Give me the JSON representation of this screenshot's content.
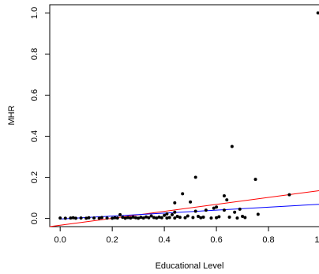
{
  "chart_data": {
    "type": "scatter",
    "title": "",
    "xlabel": "Educational Level",
    "ylabel": "MHR",
    "xlim": [
      -0.04,
      1.0
    ],
    "ylim": [
      -0.04,
      1.04
    ],
    "xticks": [
      0.0,
      0.2,
      0.4,
      0.6,
      0.8,
      1.0
    ],
    "yticks": [
      0.0,
      0.2,
      0.4,
      0.6,
      0.8,
      1.0
    ],
    "xtick_labels": [
      "0.0",
      "0.2",
      "0.4",
      "0.6",
      "0.8",
      "1.0"
    ],
    "ytick_labels": [
      "0.0",
      "0.2",
      "0.4",
      "0.6",
      "0.8",
      "1.0"
    ],
    "grid": false,
    "points": [
      [
        0.0,
        0.002
      ],
      [
        0.02,
        0.001
      ],
      [
        0.04,
        0.002
      ],
      [
        0.05,
        0.003
      ],
      [
        0.06,
        0.001
      ],
      [
        0.08,
        0.002
      ],
      [
        0.1,
        0.001
      ],
      [
        0.11,
        0.003
      ],
      [
        0.13,
        0.002
      ],
      [
        0.15,
        0.001
      ],
      [
        0.16,
        0.004
      ],
      [
        0.18,
        0.002
      ],
      [
        0.2,
        0.001
      ],
      [
        0.21,
        0.003
      ],
      [
        0.22,
        0.002
      ],
      [
        0.23,
        0.018
      ],
      [
        0.24,
        0.005
      ],
      [
        0.25,
        0.001
      ],
      [
        0.26,
        0.004
      ],
      [
        0.27,
        0.002
      ],
      [
        0.28,
        0.006
      ],
      [
        0.29,
        0.003
      ],
      [
        0.3,
        0.001
      ],
      [
        0.31,
        0.005
      ],
      [
        0.32,
        0.002
      ],
      [
        0.33,
        0.007
      ],
      [
        0.34,
        0.003
      ],
      [
        0.35,
        0.012
      ],
      [
        0.36,
        0.004
      ],
      [
        0.37,
        0.002
      ],
      [
        0.38,
        0.006
      ],
      [
        0.39,
        0.003
      ],
      [
        0.4,
        0.015
      ],
      [
        0.41,
        0.022
      ],
      [
        0.41,
        0.002
      ],
      [
        0.42,
        0.004
      ],
      [
        0.43,
        0.018
      ],
      [
        0.44,
        0.002
      ],
      [
        0.44,
        0.03
      ],
      [
        0.44,
        0.076
      ],
      [
        0.45,
        0.01
      ],
      [
        0.46,
        0.005
      ],
      [
        0.47,
        0.12
      ],
      [
        0.48,
        0.003
      ],
      [
        0.49,
        0.012
      ],
      [
        0.5,
        0.08
      ],
      [
        0.51,
        0.004
      ],
      [
        0.52,
        0.035
      ],
      [
        0.52,
        0.2
      ],
      [
        0.53,
        0.01
      ],
      [
        0.54,
        0.003
      ],
      [
        0.55,
        0.006
      ],
      [
        0.56,
        0.04
      ],
      [
        0.58,
        0.002
      ],
      [
        0.59,
        0.05
      ],
      [
        0.6,
        0.055
      ],
      [
        0.6,
        0.003
      ],
      [
        0.61,
        0.008
      ],
      [
        0.63,
        0.11
      ],
      [
        0.63,
        0.04
      ],
      [
        0.64,
        0.09
      ],
      [
        0.65,
        0.006
      ],
      [
        0.66,
        0.35
      ],
      [
        0.67,
        0.03
      ],
      [
        0.68,
        0.002
      ],
      [
        0.69,
        0.045
      ],
      [
        0.7,
        0.01
      ],
      [
        0.71,
        0.004
      ],
      [
        0.75,
        0.19
      ],
      [
        0.76,
        0.02
      ],
      [
        0.88,
        0.115
      ],
      [
        0.99,
        1.0
      ]
    ],
    "fit_lines": [
      {
        "color": "#ff0000",
        "x": [
          -0.04,
          1.0
        ],
        "y": [
          -0.04,
          0.136
        ]
      },
      {
        "color": "#0000ff",
        "x": [
          0.0,
          1.0
        ],
        "y": [
          -0.003,
          0.069
        ]
      }
    ],
    "point_color": "#000000"
  }
}
